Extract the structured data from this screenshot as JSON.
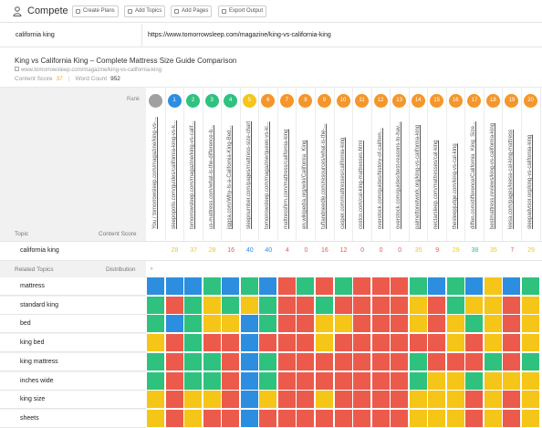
{
  "app": {
    "title": "Compete",
    "icon": "user-icon"
  },
  "toolbar": {
    "buttons": [
      {
        "label": "Create Plans",
        "icon": "document-icon"
      },
      {
        "label": "Add Topics",
        "icon": "document-icon"
      },
      {
        "label": "Add Pages",
        "icon": "document-icon"
      },
      {
        "label": "Export Output",
        "icon": "export-icon"
      }
    ]
  },
  "query": {
    "keyword": "california king",
    "url": "https://www.tomorrowsleep.com/magazine/king-vs-california-king"
  },
  "article": {
    "title": "King vs California King – Complete Mattress Size Guide Comparison",
    "url": "www.tomorrowsleep.com/magazine/king-vs-california-king",
    "content_score_label": "Content Score",
    "content_score": "37",
    "word_count_label": "Word Count",
    "word_count": "952"
  },
  "table": {
    "rank_label": "Rank",
    "topic_header": "Topic",
    "content_score_header": "Content Score",
    "related_topics_header": "Related Topics",
    "distribution_header": "Distribution",
    "distribution_toggle": "»",
    "keyword_row_label": "california king",
    "colors": {
      "gray": "#a0a0a0",
      "blue": "#2d8ee0",
      "green": "#2ec27e",
      "yellow": "#f5c518",
      "orange": "#f5962a",
      "red": "#ec5a4c"
    },
    "columns": [
      {
        "rank": "",
        "rank_color": "gray",
        "url": "You / tomorrowsleep.com/magazine/king-vs-...",
        "score": "",
        "score_color": ""
      },
      {
        "rank": "1",
        "rank_color": "blue",
        "url": "sleepopolis.com/guides/california-king-vs-k...",
        "score": "28",
        "score_color": "yellow"
      },
      {
        "rank": "2",
        "rank_color": "green",
        "url": "tomorrowsleep.com/magazine/king-vs-calif...",
        "score": "37",
        "score_color": "yellow"
      },
      {
        "rank": "3",
        "rank_color": "green",
        "url": "us-mattress.com/what-is-the-difference-b...",
        "score": "28",
        "score_color": "yellow"
      },
      {
        "rank": "4",
        "rank_color": "green",
        "url": "jiggsa.com/Why-Is-a-California-King-Bed...",
        "score": "16",
        "score_color": "red"
      },
      {
        "rank": "5",
        "rank_color": "yellow",
        "url": "sleepnumber.com/pages/mattress-size-chart",
        "score": "40",
        "score_color": "blue"
      },
      {
        "rank": "6",
        "rank_color": "orange",
        "url": "tomorrowsleep.com/magazine/queen-vs-ki...",
        "score": "40",
        "score_color": "blue"
      },
      {
        "rank": "7",
        "rank_color": "orange",
        "url": "mattressfirm.com/mattress/california-king",
        "score": "4",
        "score_color": "red"
      },
      {
        "rank": "8",
        "rank_color": "orange",
        "url": "en.wikipedia.org/wiki/California_King",
        "score": "0",
        "score_color": "red"
      },
      {
        "rank": "9",
        "rank_color": "orange",
        "url": "tuftandneedle.com/resources/what-is-the-...",
        "score": "16",
        "score_color": "red"
      },
      {
        "rank": "10",
        "rank_color": "orange",
        "url": "casper.com/mattresses/california-king",
        "score": "12",
        "score_color": "red"
      },
      {
        "rank": "11",
        "rank_color": "orange",
        "url": "costco.com/cal-king-mattresses.html",
        "score": "0",
        "score_color": "red"
      },
      {
        "rank": "12",
        "rank_color": "orange",
        "url": "overstock.com/guides/history-of-californ...",
        "score": "0",
        "score_color": "red"
      },
      {
        "rank": "13",
        "rank_color": "orange",
        "url": "overstock.com/guides/best-reasons-to-hav...",
        "score": "0",
        "score_color": "red"
      },
      {
        "rank": "14",
        "rank_color": "orange",
        "url": "palmettonetwork.org/king-vs-california-king",
        "score": "35",
        "score_color": "yellow"
      },
      {
        "rank": "15",
        "rank_color": "orange",
        "url": "nectarsleep.com/mattresses/cal-king",
        "score": "9",
        "score_color": "red"
      },
      {
        "rank": "16",
        "rank_color": "orange",
        "url": "thesleepjudge.com/king-vs-cal-king",
        "score": "29",
        "score_color": "yellow"
      },
      {
        "rank": "17",
        "rank_color": "orange",
        "url": "diffen.com/difference/California_King_Size...",
        "score": "38",
        "score_color": "green"
      },
      {
        "rank": "18",
        "rank_color": "orange",
        "url": "bestmattress.reviews/king-vs-california-king",
        "score": "35",
        "score_color": "yellow"
      },
      {
        "rank": "19",
        "rank_color": "orange",
        "url": "leesa.com/pages/leesa-cal-king-mattress",
        "score": "7",
        "score_color": "red"
      },
      {
        "rank": "20",
        "rank_color": "orange",
        "url": "sleepadvisor.org/king-vs-california-king",
        "score": "29",
        "score_color": "yellow"
      }
    ],
    "topics": [
      {
        "label": "mattress",
        "cells": [
          "blue",
          "blue",
          "blue",
          "green",
          "blue",
          "green",
          "blue",
          "red",
          "green",
          "red",
          "green",
          "red",
          "red",
          "red",
          "green",
          "blue",
          "green",
          "blue",
          "yellow",
          "blue",
          "green"
        ]
      },
      {
        "label": "standard king",
        "cells": [
          "green",
          "red",
          "green",
          "yellow",
          "green",
          "yellow",
          "green",
          "red",
          "red",
          "green",
          "red",
          "red",
          "red",
          "red",
          "yellow",
          "red",
          "green",
          "yellow",
          "yellow",
          "red",
          "yellow"
        ]
      },
      {
        "label": "bed",
        "cells": [
          "green",
          "blue",
          "green",
          "yellow",
          "yellow",
          "blue",
          "green",
          "red",
          "red",
          "yellow",
          "yellow",
          "red",
          "red",
          "red",
          "yellow",
          "red",
          "yellow",
          "green",
          "yellow",
          "red",
          "yellow"
        ]
      },
      {
        "label": "king bed",
        "cells": [
          "yellow",
          "red",
          "green",
          "red",
          "red",
          "blue",
          "red",
          "red",
          "red",
          "yellow",
          "red",
          "red",
          "red",
          "red",
          "red",
          "red",
          "yellow",
          "red",
          "yellow",
          "red",
          "yellow"
        ]
      },
      {
        "label": "king mattress",
        "cells": [
          "green",
          "red",
          "green",
          "green",
          "red",
          "blue",
          "green",
          "red",
          "red",
          "red",
          "red",
          "red",
          "red",
          "red",
          "green",
          "red",
          "red",
          "red",
          "green",
          "red",
          "green"
        ]
      },
      {
        "label": "inches wide",
        "cells": [
          "green",
          "red",
          "green",
          "green",
          "red",
          "blue",
          "green",
          "red",
          "red",
          "red",
          "red",
          "red",
          "red",
          "red",
          "green",
          "yellow",
          "yellow",
          "green",
          "yellow",
          "yellow",
          "yellow"
        ]
      },
      {
        "label": "king size",
        "cells": [
          "yellow",
          "red",
          "yellow",
          "yellow",
          "red",
          "blue",
          "yellow",
          "red",
          "red",
          "yellow",
          "red",
          "red",
          "red",
          "red",
          "yellow",
          "yellow",
          "yellow",
          "red",
          "yellow",
          "red",
          "yellow"
        ]
      },
      {
        "label": "sheets",
        "cells": [
          "yellow",
          "red",
          "yellow",
          "red",
          "red",
          "blue",
          "red",
          "red",
          "red",
          "red",
          "red",
          "red",
          "red",
          "red",
          "yellow",
          "yellow",
          "yellow",
          "red",
          "yellow",
          "red",
          "yellow"
        ]
      }
    ]
  }
}
